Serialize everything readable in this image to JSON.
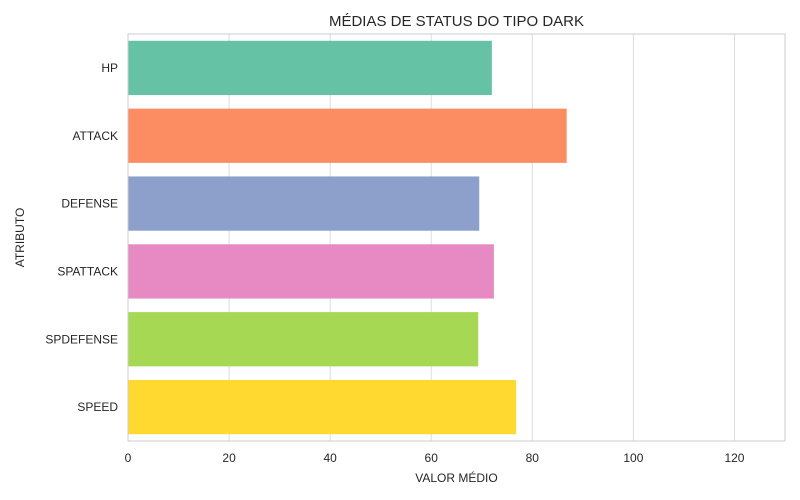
{
  "chart_data": {
    "type": "bar",
    "orientation": "horizontal",
    "title": "MÉDIAS DE STATUS DO TIPO DARK",
    "xlabel": "VALOR MÉDIO",
    "ylabel": "ATRIBUTO",
    "categories": [
      "HP",
      "ATTACK",
      "DEFENSE",
      "SPATTACK",
      "SPDEFENSE",
      "SPEED"
    ],
    "values": [
      72.0,
      86.8,
      69.5,
      72.4,
      69.3,
      76.8
    ],
    "colors": [
      "#66c2a5",
      "#fc8d62",
      "#8da0cb",
      "#e78ac3",
      "#a6d854",
      "#ffd92f"
    ],
    "xlim": [
      0,
      130
    ],
    "xticks": [
      0,
      20,
      40,
      60,
      80,
      100,
      120
    ],
    "grid": "vertical",
    "legend": "none"
  }
}
